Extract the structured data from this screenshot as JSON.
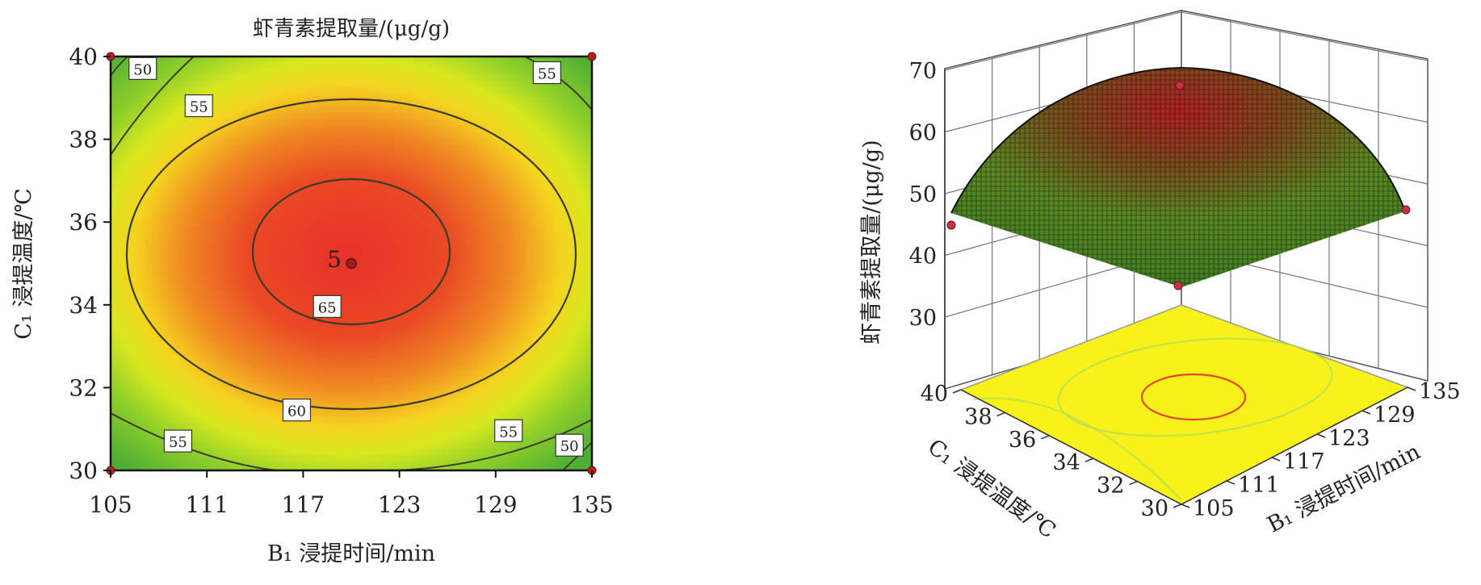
{
  "chart_data": [
    {
      "type": "contour",
      "title": "虾青素提取量/(μg/g)",
      "xlabel": "B₁ 浸提时间/min",
      "ylabel": "C₁ 浸提温度/℃",
      "xlim": [
        105,
        135
      ],
      "ylim": [
        30,
        40
      ],
      "xticks": [
        105,
        111,
        117,
        123,
        129,
        135
      ],
      "yticks": [
        30,
        32,
        34,
        36,
        38,
        40
      ],
      "contour_levels": [
        50,
        55,
        60,
        65
      ],
      "contour_labels": [
        {
          "text": "50",
          "x": 107,
          "y": 39.7
        },
        {
          "text": "55",
          "x": 110.5,
          "y": 38.8
        },
        {
          "text": "55",
          "x": 132.2,
          "y": 39.6
        },
        {
          "text": "65",
          "x": 118.5,
          "y": 33.95
        },
        {
          "text": "60",
          "x": 116.6,
          "y": 31.45
        },
        {
          "text": "55",
          "x": 109.2,
          "y": 30.7
        },
        {
          "text": "55",
          "x": 129.8,
          "y": 30.95
        },
        {
          "text": "50",
          "x": 133.6,
          "y": 30.6
        }
      ],
      "design_point": {
        "x": 120,
        "y": 35,
        "label": "5"
      },
      "optimum": {
        "x": 120,
        "y": 35
      },
      "grid": false
    },
    {
      "type": "surface3d",
      "zlabel": "虾青素提取量/(μg/g)",
      "xlabel": "B₁ 浸提时间/min",
      "ylabel": "C₁ 浸提温度/℃",
      "x_ticks": [
        105,
        111,
        117,
        123,
        129,
        135
      ],
      "y_ticks": [
        30,
        32,
        34,
        36,
        38,
        40
      ],
      "z_ticks": [
        30,
        40,
        50,
        60,
        70
      ],
      "zlim": [
        30,
        70
      ],
      "surface_points": [
        {
          "x": 105,
          "y": 40,
          "z": 44
        },
        {
          "x": 135,
          "y": 30,
          "z": 45
        },
        {
          "x": 105,
          "y": 30,
          "z": 45
        },
        {
          "x": 120,
          "y": 35,
          "z": 67
        }
      ],
      "floor_contours": true,
      "grid": true
    }
  ]
}
